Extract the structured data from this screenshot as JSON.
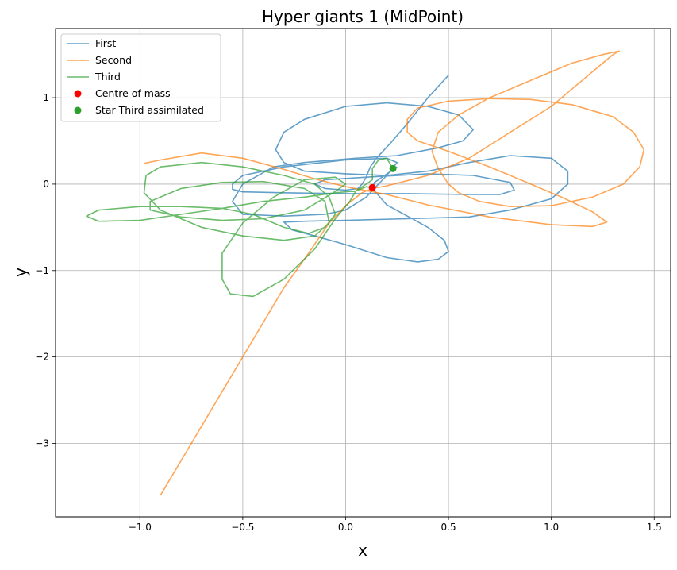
{
  "chart_data": {
    "type": "line",
    "title": "Hyper giants 1 (MidPoint)",
    "xlabel": "x",
    "ylabel": "y",
    "xlim": [
      -1.41,
      1.58
    ],
    "ylim": [
      -3.85,
      1.8
    ],
    "xticks": [
      -1.0,
      -0.5,
      0.0,
      0.5,
      1.0,
      1.5
    ],
    "xtick_labels": [
      "−1.0",
      "−0.5",
      "0.0",
      "0.5",
      "1.0",
      "1.5"
    ],
    "yticks": [
      -3,
      -2,
      -1,
      0,
      1
    ],
    "ytick_labels": [
      "−3",
      "−2",
      "−1",
      "0",
      "1"
    ],
    "grid": true,
    "legend_position": "top-left",
    "series": [
      {
        "name": "First",
        "color": "#1f77b4",
        "points": [
          [
            0.5,
            1.26
          ],
          [
            0.4,
            1.0
          ],
          [
            0.3,
            0.7
          ],
          [
            0.22,
            0.48
          ],
          [
            0.15,
            0.3
          ],
          [
            0.12,
            0.2
          ],
          [
            0.1,
            0.08
          ],
          [
            0.08,
            0.0
          ],
          [
            0.06,
            -0.05
          ],
          [
            0.0,
            -0.07
          ],
          [
            -0.1,
            -0.05
          ],
          [
            -0.15,
            0.0
          ],
          [
            -0.1,
            0.05
          ],
          [
            0.1,
            0.08
          ],
          [
            0.4,
            0.12
          ],
          [
            0.62,
            0.1
          ],
          [
            0.8,
            0.02
          ],
          [
            0.82,
            -0.07
          ],
          [
            0.75,
            -0.12
          ],
          [
            0.6,
            -0.12
          ],
          [
            0.3,
            -0.11
          ],
          [
            0.0,
            -0.11
          ],
          [
            -0.3,
            -0.1
          ],
          [
            -0.5,
            -0.09
          ],
          [
            -0.55,
            -0.06
          ],
          [
            -0.55,
            0.0
          ],
          [
            -0.5,
            0.1
          ],
          [
            -0.3,
            0.2
          ],
          [
            0.0,
            0.28
          ],
          [
            0.2,
            0.3
          ],
          [
            0.25,
            0.25
          ],
          [
            0.2,
            0.1
          ],
          [
            0.1,
            -0.15
          ],
          [
            0.0,
            -0.3
          ],
          [
            -0.1,
            -0.35
          ],
          [
            -0.3,
            -0.37
          ],
          [
            -0.5,
            -0.35
          ],
          [
            -0.55,
            -0.2
          ],
          [
            -0.5,
            0.0
          ],
          [
            -0.35,
            0.2
          ],
          [
            -0.2,
            0.25
          ],
          [
            0.05,
            0.3
          ],
          [
            0.25,
            0.33
          ],
          [
            0.45,
            0.42
          ],
          [
            0.57,
            0.5
          ],
          [
            0.62,
            0.63
          ],
          [
            0.55,
            0.8
          ],
          [
            0.4,
            0.9
          ],
          [
            0.2,
            0.94
          ],
          [
            0.0,
            0.9
          ],
          [
            -0.2,
            0.75
          ],
          [
            -0.3,
            0.6
          ],
          [
            -0.34,
            0.4
          ],
          [
            -0.3,
            0.25
          ],
          [
            -0.2,
            0.15
          ],
          [
            0.0,
            0.12
          ],
          [
            0.2,
            0.1
          ],
          [
            0.4,
            0.15
          ],
          [
            0.6,
            0.25
          ],
          [
            0.8,
            0.33
          ],
          [
            1.0,
            0.3
          ],
          [
            1.08,
            0.15
          ],
          [
            1.08,
            0.0
          ],
          [
            1.0,
            -0.17
          ],
          [
            0.8,
            -0.3
          ],
          [
            0.6,
            -0.38
          ],
          [
            0.3,
            -0.4
          ],
          [
            0.0,
            -0.42
          ],
          [
            -0.2,
            -0.43
          ],
          [
            -0.3,
            -0.44
          ],
          [
            -0.26,
            -0.53
          ],
          [
            -0.15,
            -0.6
          ],
          [
            0.0,
            -0.7
          ],
          [
            0.2,
            -0.85
          ],
          [
            0.35,
            -0.9
          ],
          [
            0.45,
            -0.87
          ],
          [
            0.5,
            -0.78
          ],
          [
            0.48,
            -0.65
          ],
          [
            0.4,
            -0.5
          ],
          [
            0.3,
            -0.37
          ],
          [
            0.2,
            -0.24
          ],
          [
            0.13,
            -0.05
          ],
          [
            0.14,
            0.02
          ],
          [
            0.25,
            0.2
          ]
        ]
      },
      {
        "name": "Second",
        "color": "#ff7f0e",
        "points": [
          [
            -0.9,
            -3.6
          ],
          [
            -0.75,
            -3.0
          ],
          [
            -0.6,
            -2.4
          ],
          [
            -0.45,
            -1.8
          ],
          [
            -0.3,
            -1.2
          ],
          [
            -0.18,
            -0.8
          ],
          [
            -0.08,
            -0.45
          ],
          [
            0.0,
            -0.25
          ],
          [
            0.08,
            -0.1
          ],
          [
            0.13,
            -0.05
          ],
          [
            0.2,
            -0.02
          ],
          [
            0.4,
            0.1
          ],
          [
            0.6,
            0.3
          ],
          [
            0.8,
            0.6
          ],
          [
            1.0,
            0.9
          ],
          [
            1.1,
            1.1
          ],
          [
            1.2,
            1.3
          ],
          [
            1.3,
            1.5
          ],
          [
            1.33,
            1.54
          ],
          [
            1.25,
            1.5
          ],
          [
            1.1,
            1.4
          ],
          [
            0.9,
            1.2
          ],
          [
            0.7,
            1.0
          ],
          [
            0.55,
            0.8
          ],
          [
            0.45,
            0.6
          ],
          [
            0.42,
            0.38
          ],
          [
            0.45,
            0.18
          ],
          [
            0.5,
            0.0
          ],
          [
            0.55,
            -0.1
          ],
          [
            0.65,
            -0.2
          ],
          [
            0.8,
            -0.26
          ],
          [
            1.0,
            -0.25
          ],
          [
            1.2,
            -0.15
          ],
          [
            1.35,
            0.0
          ],
          [
            1.43,
            0.2
          ],
          [
            1.45,
            0.4
          ],
          [
            1.4,
            0.6
          ],
          [
            1.3,
            0.78
          ],
          [
            1.1,
            0.92
          ],
          [
            0.9,
            0.98
          ],
          [
            0.7,
            0.99
          ],
          [
            0.5,
            0.96
          ],
          [
            0.35,
            0.88
          ],
          [
            0.3,
            0.75
          ],
          [
            0.3,
            0.6
          ],
          [
            0.35,
            0.5
          ],
          [
            0.5,
            0.38
          ],
          [
            0.7,
            0.2
          ],
          [
            0.9,
            0.0
          ],
          [
            1.05,
            -0.15
          ],
          [
            1.2,
            -0.32
          ],
          [
            1.27,
            -0.44
          ],
          [
            1.2,
            -0.49
          ],
          [
            1.0,
            -0.47
          ],
          [
            0.7,
            -0.38
          ],
          [
            0.4,
            -0.24
          ],
          [
            0.2,
            -0.12
          ],
          [
            0.0,
            -0.03
          ],
          [
            -0.15,
            0.06
          ],
          [
            -0.3,
            0.17
          ],
          [
            -0.5,
            0.3
          ],
          [
            -0.7,
            0.36
          ],
          [
            -0.9,
            0.28
          ],
          [
            -0.98,
            0.24
          ]
        ]
      },
      {
        "name": "Third",
        "color": "#2ca02c",
        "points": [
          [
            0.23,
            0.18
          ],
          [
            0.2,
            0.3
          ],
          [
            0.16,
            0.28
          ],
          [
            0.13,
            0.18
          ],
          [
            0.13,
            0.05
          ],
          [
            0.1,
            0.0
          ],
          [
            0.05,
            -0.08
          ],
          [
            -0.05,
            -0.1
          ],
          [
            -0.2,
            -0.15
          ],
          [
            -0.4,
            -0.2
          ],
          [
            -0.6,
            -0.28
          ],
          [
            -0.8,
            -0.35
          ],
          [
            -1.0,
            -0.42
          ],
          [
            -1.2,
            -0.43
          ],
          [
            -1.26,
            -0.37
          ],
          [
            -1.2,
            -0.3
          ],
          [
            -1.0,
            -0.26
          ],
          [
            -0.8,
            -0.26
          ],
          [
            -0.6,
            -0.28
          ],
          [
            -0.45,
            -0.35
          ],
          [
            -0.3,
            -0.5
          ],
          [
            -0.18,
            -0.57
          ],
          [
            -0.1,
            -0.5
          ],
          [
            -0.05,
            -0.35
          ],
          [
            -0.08,
            -0.15
          ],
          [
            -0.15,
            0.0
          ],
          [
            -0.3,
            0.1
          ],
          [
            -0.5,
            0.2
          ],
          [
            -0.7,
            0.25
          ],
          [
            -0.9,
            0.2
          ],
          [
            -0.97,
            0.1
          ],
          [
            -0.98,
            -0.1
          ],
          [
            -0.9,
            -0.3
          ],
          [
            -0.7,
            -0.5
          ],
          [
            -0.5,
            -0.6
          ],
          [
            -0.3,
            -0.65
          ],
          [
            -0.15,
            -0.6
          ],
          [
            -0.08,
            -0.45
          ],
          [
            -0.1,
            -0.2
          ],
          [
            -0.2,
            -0.05
          ],
          [
            -0.4,
            0.03
          ],
          [
            -0.6,
            0.02
          ],
          [
            -0.8,
            -0.05
          ],
          [
            -0.95,
            -0.2
          ],
          [
            -0.95,
            -0.3
          ],
          [
            -0.8,
            -0.38
          ],
          [
            -0.6,
            -0.42
          ],
          [
            -0.4,
            -0.4
          ],
          [
            -0.2,
            -0.3
          ],
          [
            -0.06,
            -0.1
          ],
          [
            0.0,
            0.0
          ],
          [
            -0.05,
            0.08
          ],
          [
            -0.2,
            0.05
          ],
          [
            -0.35,
            -0.15
          ],
          [
            -0.5,
            -0.45
          ],
          [
            -0.6,
            -0.8
          ],
          [
            -0.6,
            -1.1
          ],
          [
            -0.56,
            -1.27
          ],
          [
            -0.45,
            -1.3
          ],
          [
            -0.3,
            -1.1
          ],
          [
            -0.15,
            -0.75
          ],
          [
            -0.05,
            -0.4
          ],
          [
            0.02,
            -0.2
          ],
          [
            0.05,
            -0.08
          ],
          [
            0.1,
            -0.03
          ],
          [
            0.13,
            -0.04
          ]
        ]
      }
    ],
    "markers": [
      {
        "name": "Centre of mass",
        "color": "#ff0000",
        "x": 0.13,
        "y": -0.04
      },
      {
        "name": "Star Third assimilated",
        "color": "#2ca02c",
        "x": 0.23,
        "y": 0.18
      }
    ]
  }
}
